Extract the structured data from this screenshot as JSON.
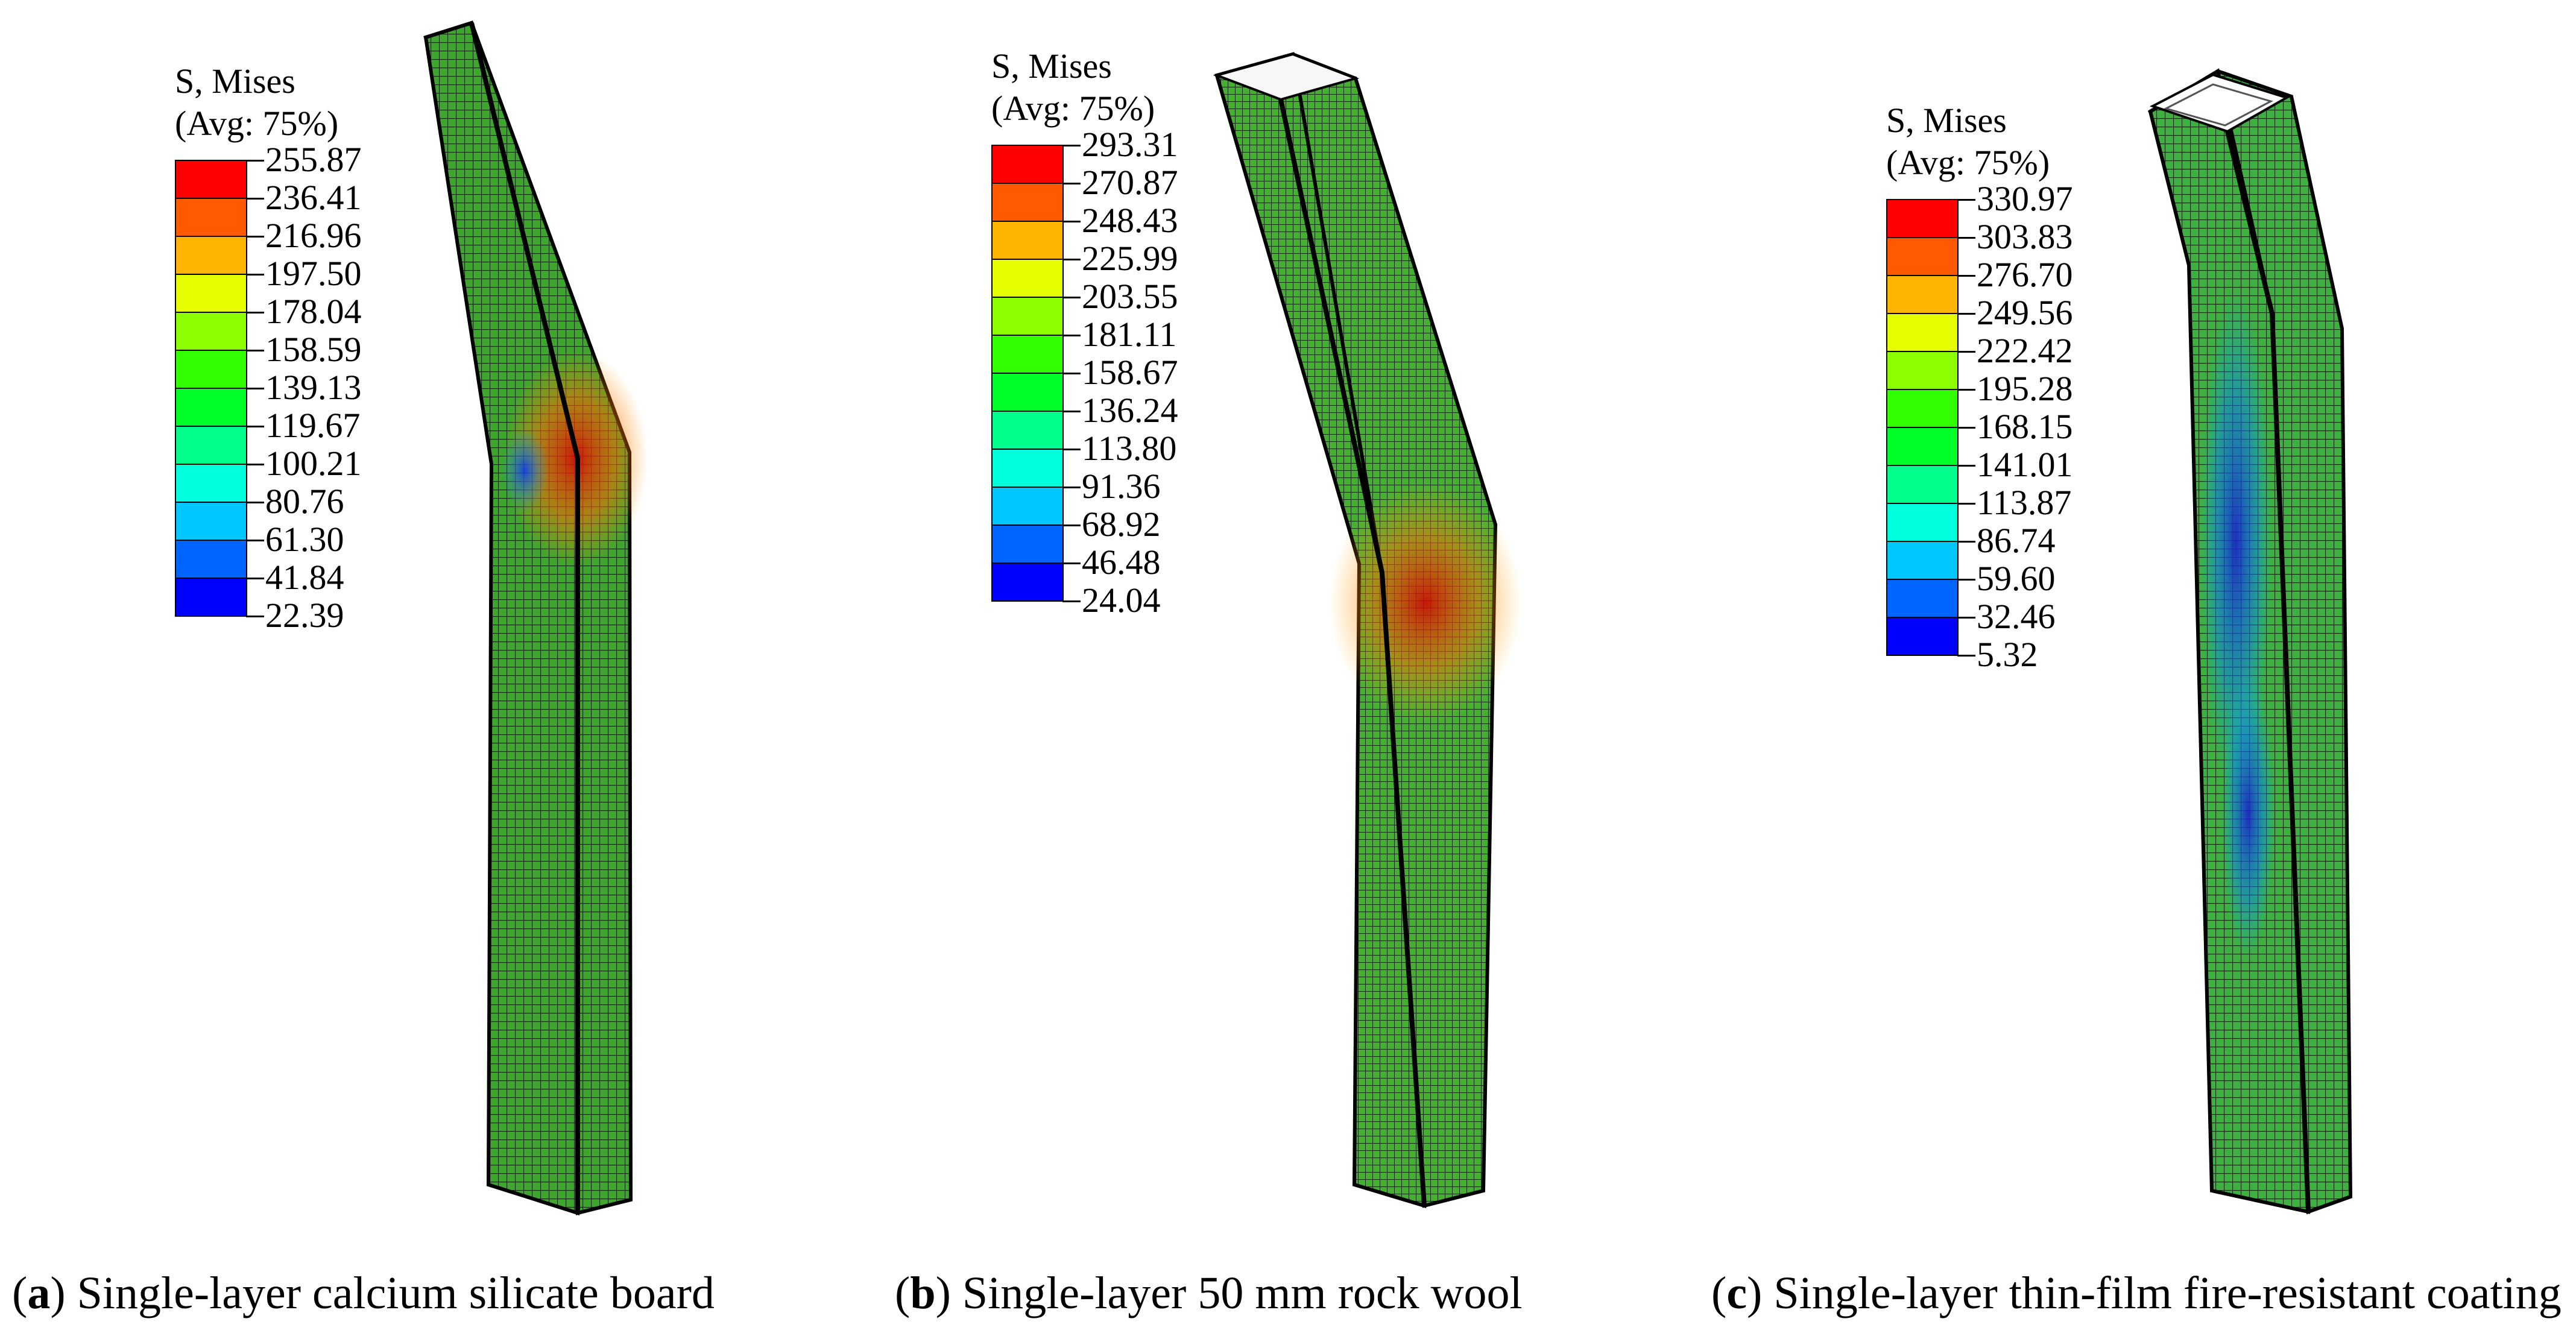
{
  "panels": [
    {
      "id": "a",
      "legend_title": [
        "S, Mises",
        "(Avg: 75%)"
      ],
      "legend_values": [
        "255.87",
        "236.41",
        "216.96",
        "197.50",
        "178.04",
        "158.59",
        "139.13",
        "119.67",
        "100.21",
        "80.76",
        "61.30",
        "41.84",
        "22.39"
      ],
      "caption": {
        "open": "(",
        "letter": "a",
        "close": ")",
        "text": " Single-layer calcium silicate board"
      }
    },
    {
      "id": "b",
      "legend_title": [
        "S, Mises",
        "(Avg: 75%)"
      ],
      "legend_values": [
        "293.31",
        "270.87",
        "248.43",
        "225.99",
        "203.55",
        "181.11",
        "158.67",
        "136.24",
        "113.80",
        "91.36",
        "68.92",
        "46.48",
        "24.04"
      ],
      "caption": {
        "open": "(",
        "letter": "b",
        "close": ")",
        "text": " Single-layer 50 mm rock wool"
      }
    },
    {
      "id": "c",
      "legend_title": [
        "S, Mises",
        "(Avg: 75%)"
      ],
      "legend_values": [
        "330.97",
        "303.83",
        "276.70",
        "249.56",
        "222.42",
        "195.28",
        "168.15",
        "141.01",
        "113.87",
        "86.74",
        "59.60",
        "32.46",
        "5.32"
      ],
      "caption": {
        "open": "(",
        "letter": "c",
        "close": ")",
        "text": " Single-layer thin-film fire-resistant coating"
      }
    }
  ],
  "colormap": [
    "#ff0000",
    "#ff5a00",
    "#ffb400",
    "#e6ff00",
    "#8cff00",
    "#32ff00",
    "#00ff28",
    "#00ff8c",
    "#00ffdc",
    "#00c8ff",
    "#0064ff",
    "#0000ff"
  ]
}
